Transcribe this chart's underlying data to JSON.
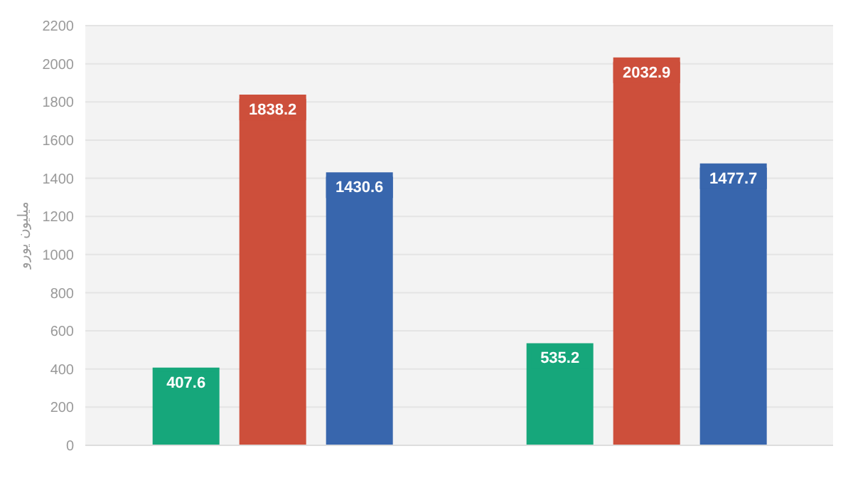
{
  "chart_data": {
    "type": "bar",
    "ylabel": "میلیون یورو",
    "categories": [
      null,
      null
    ],
    "series": [
      {
        "color": "#16a77b",
        "values": [
          407.6,
          535.2
        ]
      },
      {
        "color": "#cd4f3b",
        "values": [
          1838.2,
          2032.9
        ]
      },
      {
        "color": "#3866ad",
        "values": [
          1430.6,
          1477.7
        ]
      }
    ],
    "ylim": [
      0,
      2200
    ],
    "yticks": [
      0,
      200,
      400,
      600,
      800,
      1000,
      1200,
      1400,
      1600,
      1800,
      2000,
      2200
    ],
    "grid": "y",
    "data_labels": true,
    "legend": false
  }
}
